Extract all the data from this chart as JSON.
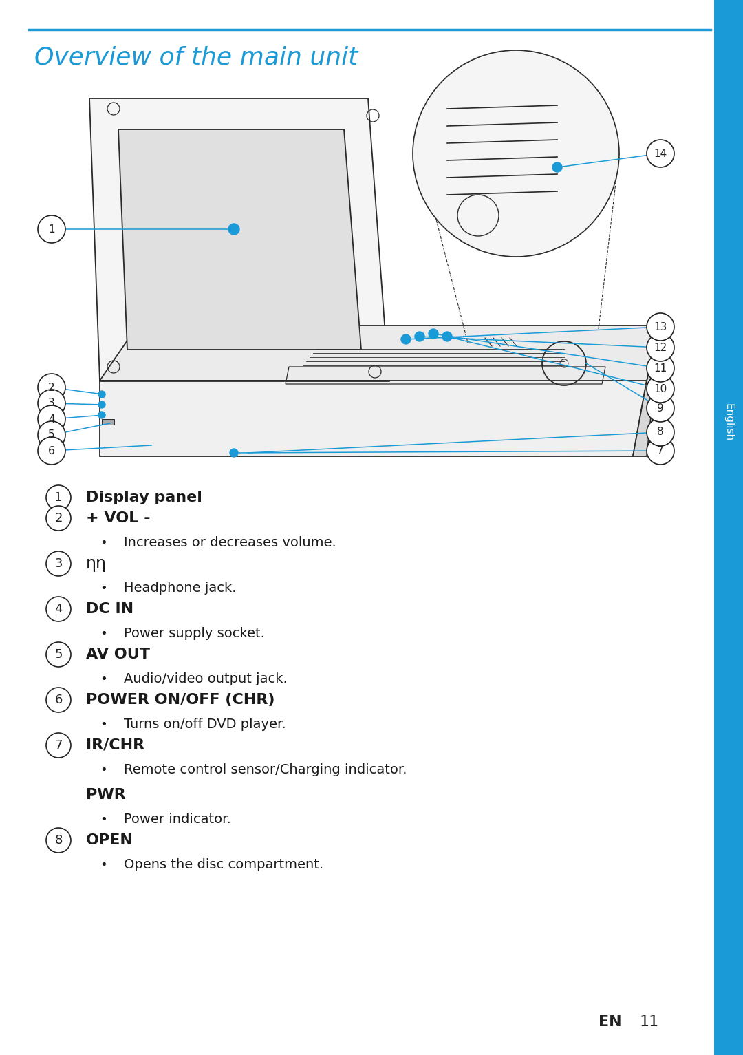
{
  "title": "Overview of the main unit",
  "title_color": "#1a9ad7",
  "title_fontsize": 26,
  "line_color": "#1a9ad7",
  "background_color": "#ffffff",
  "sidebar_color": "#1a9ad7",
  "sidebar_text": "English",
  "page_number_en": "EN",
  "page_number_11": "11",
  "items": [
    {
      "num": 1,
      "label": "Display panel",
      "bold": true,
      "sub": null
    },
    {
      "num": 2,
      "label": "+ VOL -",
      "bold": true,
      "sub": "Increases or decreases volume."
    },
    {
      "num": 3,
      "label": "η",
      "bold": false,
      "sub": "Headphone jack.",
      "headphone": true
    },
    {
      "num": 4,
      "label": "DC IN",
      "bold": true,
      "sub": "Power supply socket."
    },
    {
      "num": 5,
      "label": "AV OUT",
      "bold": true,
      "sub": "Audio/video output jack."
    },
    {
      "num": 6,
      "label": "POWER ON/OFF (CHR)",
      "bold": true,
      "sub": "Turns on/off DVD player."
    },
    {
      "num": 7,
      "label": "IR/CHR",
      "bold": true,
      "sub": "Remote control sensor/Charging indicator.",
      "extra_label": "PWR",
      "extra_sub": "Power indicator."
    },
    {
      "num": 8,
      "label": "OPEN",
      "bold": true,
      "sub": "Opens the disc compartment."
    }
  ],
  "text_color": "#1a1a1a",
  "circle_edge_color": "#222222",
  "label_fontsize": 16,
  "sub_fontsize": 15,
  "num_fontsize": 14
}
